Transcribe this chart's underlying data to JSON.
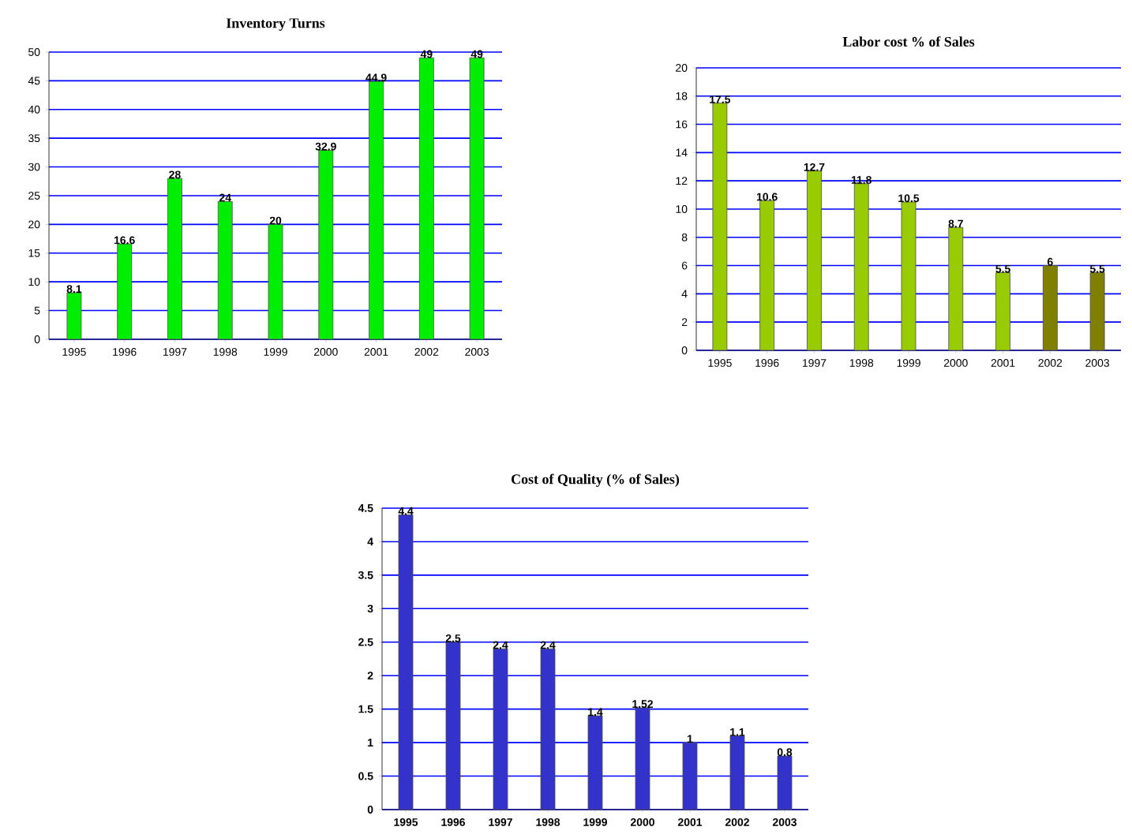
{
  "chart_data": [
    {
      "type": "bar",
      "title": "Inventory Turns",
      "categories": [
        "1995",
        "1996",
        "1997",
        "1998",
        "1999",
        "2000",
        "2001",
        "2002",
        "2003"
      ],
      "values": [
        8.1,
        16.6,
        28,
        24,
        20,
        32.9,
        44.9,
        49,
        49
      ],
      "color": "#00ee00",
      "ylim": [
        0,
        50
      ],
      "yticks": [
        0,
        5,
        10,
        15,
        20,
        25,
        30,
        35,
        40,
        45,
        50
      ],
      "grid": "y",
      "data_labels": true
    },
    {
      "type": "bar",
      "title": "Labor cost % of Sales",
      "categories": [
        "1995",
        "1996",
        "1997",
        "1998",
        "1999",
        "2000",
        "2001",
        "2002",
        "2003"
      ],
      "values": [
        17.5,
        10.6,
        12.7,
        11.8,
        10.5,
        8.7,
        5.5,
        6,
        5.5
      ],
      "colors": [
        "#99cc00",
        "#99cc00",
        "#99cc00",
        "#99cc00",
        "#99cc00",
        "#99cc00",
        "#99cc00",
        "#808000",
        "#808000"
      ],
      "ylim": [
        0,
        20
      ],
      "yticks": [
        0,
        2,
        4,
        6,
        8,
        10,
        12,
        14,
        16,
        18,
        20
      ],
      "grid": "y",
      "data_labels": true
    },
    {
      "type": "bar",
      "title": "Cost of Quality (% of Sales)",
      "categories": [
        "1995",
        "1996",
        "1997",
        "1998",
        "1999",
        "2000",
        "2001",
        "2002",
        "2003"
      ],
      "values": [
        4.4,
        2.5,
        2.4,
        2.4,
        1.4,
        1.52,
        1,
        1.1,
        0.8
      ],
      "color": "#3333cc",
      "ylim": [
        0,
        4.5
      ],
      "yticks": [
        0,
        0.5,
        1,
        1.5,
        2,
        2.5,
        3,
        3.5,
        4,
        4.5
      ],
      "grid": "y",
      "data_labels": true
    }
  ]
}
